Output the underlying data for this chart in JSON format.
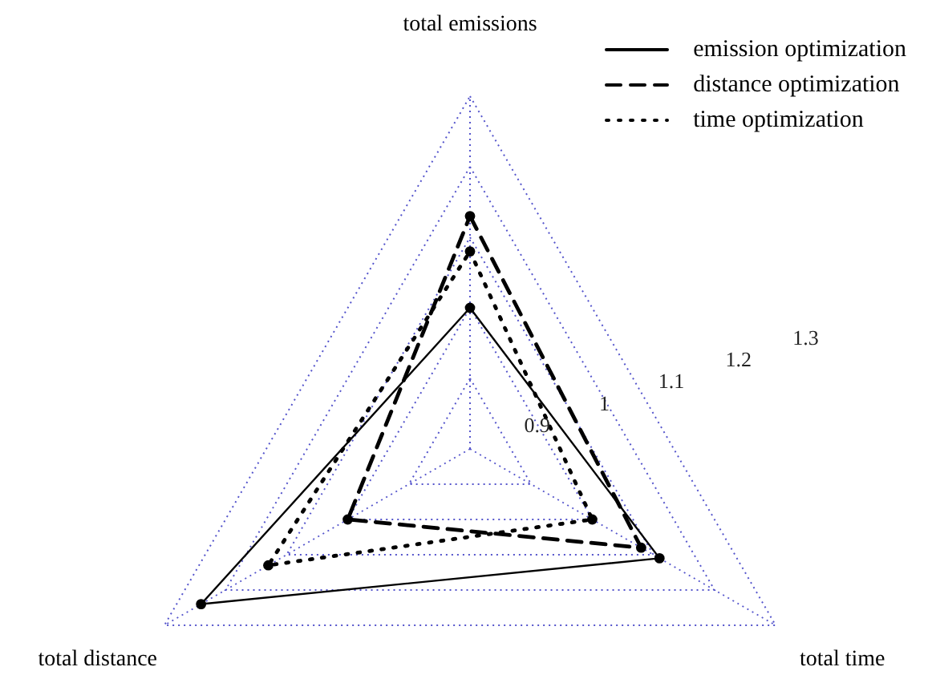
{
  "chart_data": {
    "type": "radar",
    "categories": [
      "total emissions",
      "total time",
      "total distance"
    ],
    "series": [
      {
        "name": "emission optimization",
        "color": "#000000",
        "line_style": "solid",
        "values": [
          1.0,
          1.11,
          1.24
        ]
      },
      {
        "name": "distance optimization",
        "color": "#000000",
        "line_style": "dashed",
        "values": [
          1.13,
          1.08,
          1.0
        ]
      },
      {
        "name": "time optimization",
        "color": "#000000",
        "line_style": "dotted",
        "values": [
          1.08,
          1.0,
          1.13
        ]
      }
    ],
    "ylim": [
      0.8,
      1.3
    ],
    "yticks": [
      0.9,
      1,
      1.1,
      1.2,
      1.3
    ],
    "grid": true,
    "legend": "top right",
    "marker": "circle"
  }
}
